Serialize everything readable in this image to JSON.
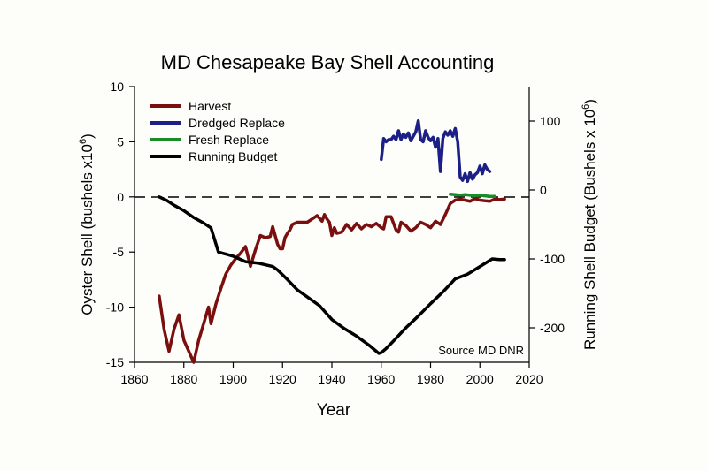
{
  "chart_data": {
    "type": "line",
    "title": "MD Chesapeake Bay Shell Accounting",
    "xlabel": "Year",
    "ylabel": "Oyster Shell (bushels x10",
    "ylabel_sup": "6",
    "ylabel_end": ")",
    "y2label": "Running Shell Budget (Bushels x 10",
    "y2label_sup": "6",
    "y2label_end": ")",
    "xlim": [
      1860,
      2020
    ],
    "ylim": [
      -15,
      10
    ],
    "y2lim": [
      -250,
      150
    ],
    "x_ticks": [
      1860,
      1880,
      1900,
      1920,
      1940,
      1960,
      1980,
      2000,
      2020
    ],
    "y_ticks": [
      -15,
      -10,
      -5,
      0,
      5,
      10
    ],
    "y2_ticks": [
      -200,
      -100,
      0,
      100
    ],
    "zero_line": "dashed",
    "legend_position": "top-left",
    "annotation": "Source MD DNR",
    "colors": {
      "harvest": "#7a0f0f",
      "dredged": "#1c1f86",
      "fresh": "#1a8a2a",
      "budget": "#000000"
    },
    "series": [
      {
        "name": "Harvest",
        "axis": "left",
        "color": "#7a0f0f",
        "x": [
          1870,
          1872,
          1874,
          1876,
          1878,
          1880,
          1882,
          1884,
          1886,
          1888,
          1890,
          1891,
          1893,
          1895,
          1897,
          1899,
          1901,
          1903,
          1905,
          1907,
          1909,
          1911,
          1913,
          1915,
          1916,
          1917,
          1918,
          1919,
          1920,
          1921,
          1922,
          1923,
          1924,
          1926,
          1928,
          1930,
          1932,
          1934,
          1936,
          1937,
          1938,
          1939,
          1940,
          1941,
          1942,
          1944,
          1946,
          1948,
          1950,
          1952,
          1954,
          1956,
          1958,
          1960,
          1961,
          1962,
          1964,
          1966,
          1967,
          1968,
          1970,
          1972,
          1974,
          1976,
          1978,
          1980,
          1982,
          1984,
          1986,
          1988,
          1990,
          1992,
          1994,
          1996,
          1998,
          2000,
          2002,
          2004,
          2006,
          2008,
          2010
        ],
        "values": [
          -9,
          -12,
          -14,
          -12,
          -10.7,
          -13,
          -14,
          -15,
          -13,
          -11.5,
          -10,
          -11.5,
          -9.7,
          -8.3,
          -7,
          -6.2,
          -5.6,
          -5.1,
          -4.5,
          -6.3,
          -4.8,
          -3.5,
          -3.7,
          -3.6,
          -2.7,
          -3.5,
          -4.3,
          -4.7,
          -4.7,
          -3.7,
          -3.3,
          -3,
          -2.5,
          -2.3,
          -2.3,
          -2.3,
          -2,
          -1.7,
          -2.2,
          -1.6,
          -2,
          -2.3,
          -3.5,
          -2.8,
          -3.3,
          -3.2,
          -2.5,
          -3,
          -2.4,
          -2.9,
          -2.5,
          -2.7,
          -2.4,
          -2.8,
          -2.9,
          -1.8,
          -1.8,
          -3,
          -3.2,
          -2.3,
          -2.6,
          -3.1,
          -2.8,
          -2.3,
          -2.5,
          -2.8,
          -2.2,
          -2.5,
          -1.6,
          -0.6,
          -0.3,
          -0.2,
          -0.3,
          -0.4,
          -0.15,
          -0.3,
          -0.35,
          -0.4,
          -0.2,
          -0.25,
          -0.2
        ]
      },
      {
        "name": "Dredged Replace",
        "axis": "left",
        "color": "#1c1f86",
        "x": [
          1960,
          1961,
          1962,
          1963,
          1964,
          1965,
          1966,
          1967,
          1968,
          1969,
          1970,
          1971,
          1972,
          1973,
          1974,
          1975,
          1976,
          1977,
          1978,
          1979,
          1980,
          1981,
          1982,
          1983,
          1984,
          1985,
          1986,
          1987,
          1988,
          1989,
          1990,
          1991,
          1992,
          1993,
          1994,
          1995,
          1996,
          1997,
          1998,
          1999,
          2000,
          2001,
          2002,
          2003,
          2004
        ],
        "values": [
          3.4,
          5.3,
          5.0,
          5.2,
          5.2,
          5.5,
          5.2,
          6.0,
          5.2,
          5.7,
          5.4,
          5.8,
          5.1,
          5.5,
          5.9,
          6.9,
          5.2,
          5.0,
          6.0,
          5.4,
          5.1,
          5.4,
          4.5,
          5.3,
          2.3,
          5.3,
          5.9,
          5.6,
          6.0,
          5.5,
          6.2,
          5.0,
          1.8,
          1.5,
          2.1,
          1.4,
          2.2,
          1.6,
          2.0,
          2.2,
          2.8,
          2.1,
          2.9,
          2.5,
          2.3
        ]
      },
      {
        "name": "Fresh Replace",
        "axis": "left",
        "color": "#1a8a2a",
        "x": [
          1988,
          1990,
          1992,
          1994,
          1996,
          1998,
          2000,
          2002,
          2004,
          2006
        ],
        "values": [
          0.25,
          0.2,
          0.15,
          0.2,
          0.15,
          0.1,
          0.15,
          0.1,
          0.05,
          0.05
        ]
      },
      {
        "name": "Running Budget",
        "axis": "right",
        "color": "#000000",
        "x": [
          1870,
          1873,
          1876,
          1880,
          1884,
          1888,
          1891,
          1894,
          1900,
          1905,
          1910,
          1916,
          1918,
          1922,
          1926,
          1930,
          1935,
          1940,
          1945,
          1950,
          1955,
          1958,
          1959,
          1960,
          1962,
          1965,
          1970,
          1975,
          1980,
          1985,
          1990,
          1995,
          2000,
          2005,
          2008,
          2010
        ],
        "values": [
          -10,
          -15,
          -22,
          -30,
          -40,
          -48,
          -55,
          -90,
          -96,
          -104,
          -106,
          -111,
          -116,
          -130,
          -145,
          -155,
          -168,
          -188,
          -201,
          -212,
          -225,
          -234,
          -237,
          -236,
          -230,
          -219,
          -200,
          -183,
          -165,
          -148,
          -129,
          -122,
          -111,
          -100,
          -101,
          -101
        ]
      }
    ]
  }
}
